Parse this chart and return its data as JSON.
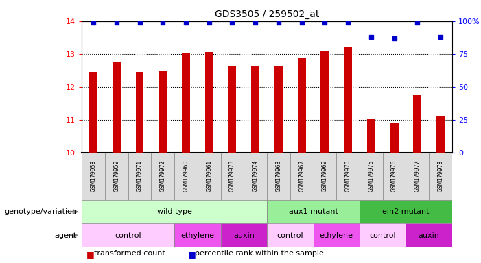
{
  "title": "GDS3505 / 259502_at",
  "samples": [
    "GSM179958",
    "GSM179959",
    "GSM179971",
    "GSM179972",
    "GSM179960",
    "GSM179961",
    "GSM179973",
    "GSM179974",
    "GSM179963",
    "GSM179967",
    "GSM179969",
    "GSM179970",
    "GSM179975",
    "GSM179976",
    "GSM179977",
    "GSM179978"
  ],
  "bar_values": [
    12.45,
    12.75,
    12.45,
    12.48,
    13.02,
    13.05,
    12.62,
    12.65,
    12.62,
    12.88,
    13.08,
    13.22,
    11.02,
    10.92,
    11.75,
    11.12
  ],
  "percentile_values": [
    99,
    99,
    99,
    99,
    99,
    99,
    99,
    99,
    99,
    99,
    99,
    99,
    88,
    87,
    99,
    88
  ],
  "ylim_left": [
    10,
    14
  ],
  "ylim_right": [
    0,
    100
  ],
  "yticks_left": [
    10,
    11,
    12,
    13,
    14
  ],
  "yticks_right": [
    0,
    25,
    50,
    75,
    100
  ],
  "bar_color": "#cc0000",
  "dot_color": "#0000cc",
  "genotype_groups": [
    {
      "label": "wild type",
      "start": 0,
      "end": 8,
      "color": "#ccffcc"
    },
    {
      "label": "aux1 mutant",
      "start": 8,
      "end": 12,
      "color": "#99ee99"
    },
    {
      "label": "ein2 mutant",
      "start": 12,
      "end": 16,
      "color": "#44bb44"
    }
  ],
  "agent_groups": [
    {
      "label": "control",
      "start": 0,
      "end": 4,
      "color": "#ffccff"
    },
    {
      "label": "ethylene",
      "start": 4,
      "end": 6,
      "color": "#ee55ee"
    },
    {
      "label": "auxin",
      "start": 6,
      "end": 8,
      "color": "#cc22cc"
    },
    {
      "label": "control",
      "start": 8,
      "end": 10,
      "color": "#ffccff"
    },
    {
      "label": "ethylene",
      "start": 10,
      "end": 12,
      "color": "#ee55ee"
    },
    {
      "label": "control",
      "start": 12,
      "end": 14,
      "color": "#ffccff"
    },
    {
      "label": "auxin",
      "start": 14,
      "end": 16,
      "color": "#cc22cc"
    }
  ],
  "legend_items": [
    {
      "label": "transformed count",
      "color": "#cc0000"
    },
    {
      "label": "percentile rank within the sample",
      "color": "#0000cc"
    }
  ],
  "row_label_genotype": "genotype/variation",
  "row_label_agent": "agent",
  "sample_box_color": "#dddddd",
  "sample_box_edge_color": "#888888"
}
